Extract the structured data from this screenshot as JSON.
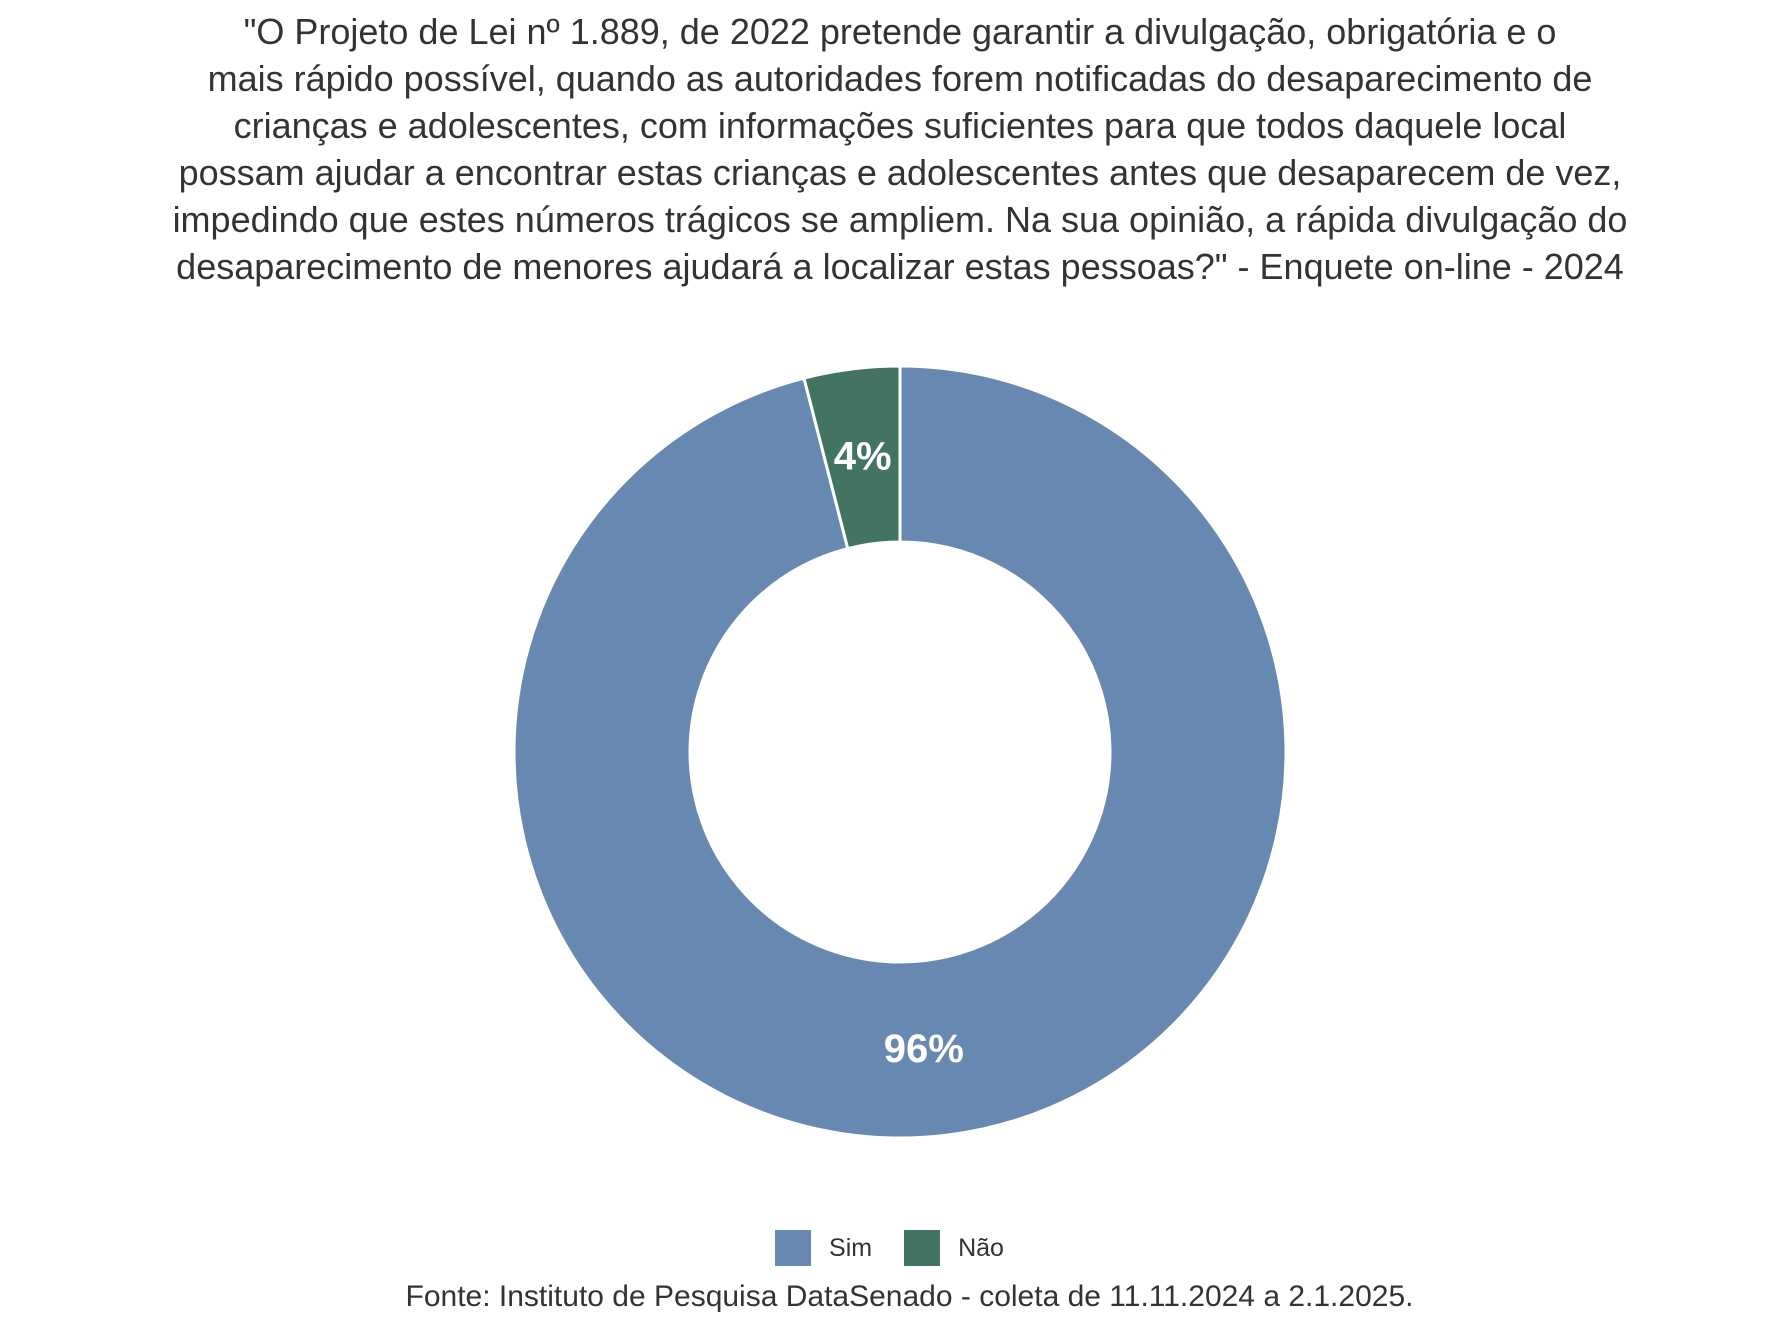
{
  "chart_data": {
    "type": "pie",
    "title_lines": [
      "\"O Projeto de Lei nº 1.889, de 2022 pretende garantir a divulgação, obrigatória e o",
      "mais rápido possível, quando as autoridades forem notificadas do desaparecimento de",
      "crianças e adolescentes, com informações suficientes para que todos daquele local",
      "possam ajudar a encontrar estas crianças e adolescentes antes que desaparecem de vez,",
      "impedindo que estes números trágicos se ampliem. Na sua opinião, a rápida divulgação do",
      "desaparecimento de menores ajudará a localizar estas pessoas?\" - Enquete on-line - 2024"
    ],
    "donut": true,
    "categories": [
      "Sim",
      "Não"
    ],
    "values": [
      96,
      4
    ],
    "value_labels": [
      "96%",
      "4%"
    ],
    "colors": [
      "#6788B1",
      "#437461"
    ],
    "legend_position": "bottom",
    "source": "Fonte: Instituto de Pesquisa DataSenado - coleta de 11.11.2024 a 2.1.2025."
  }
}
